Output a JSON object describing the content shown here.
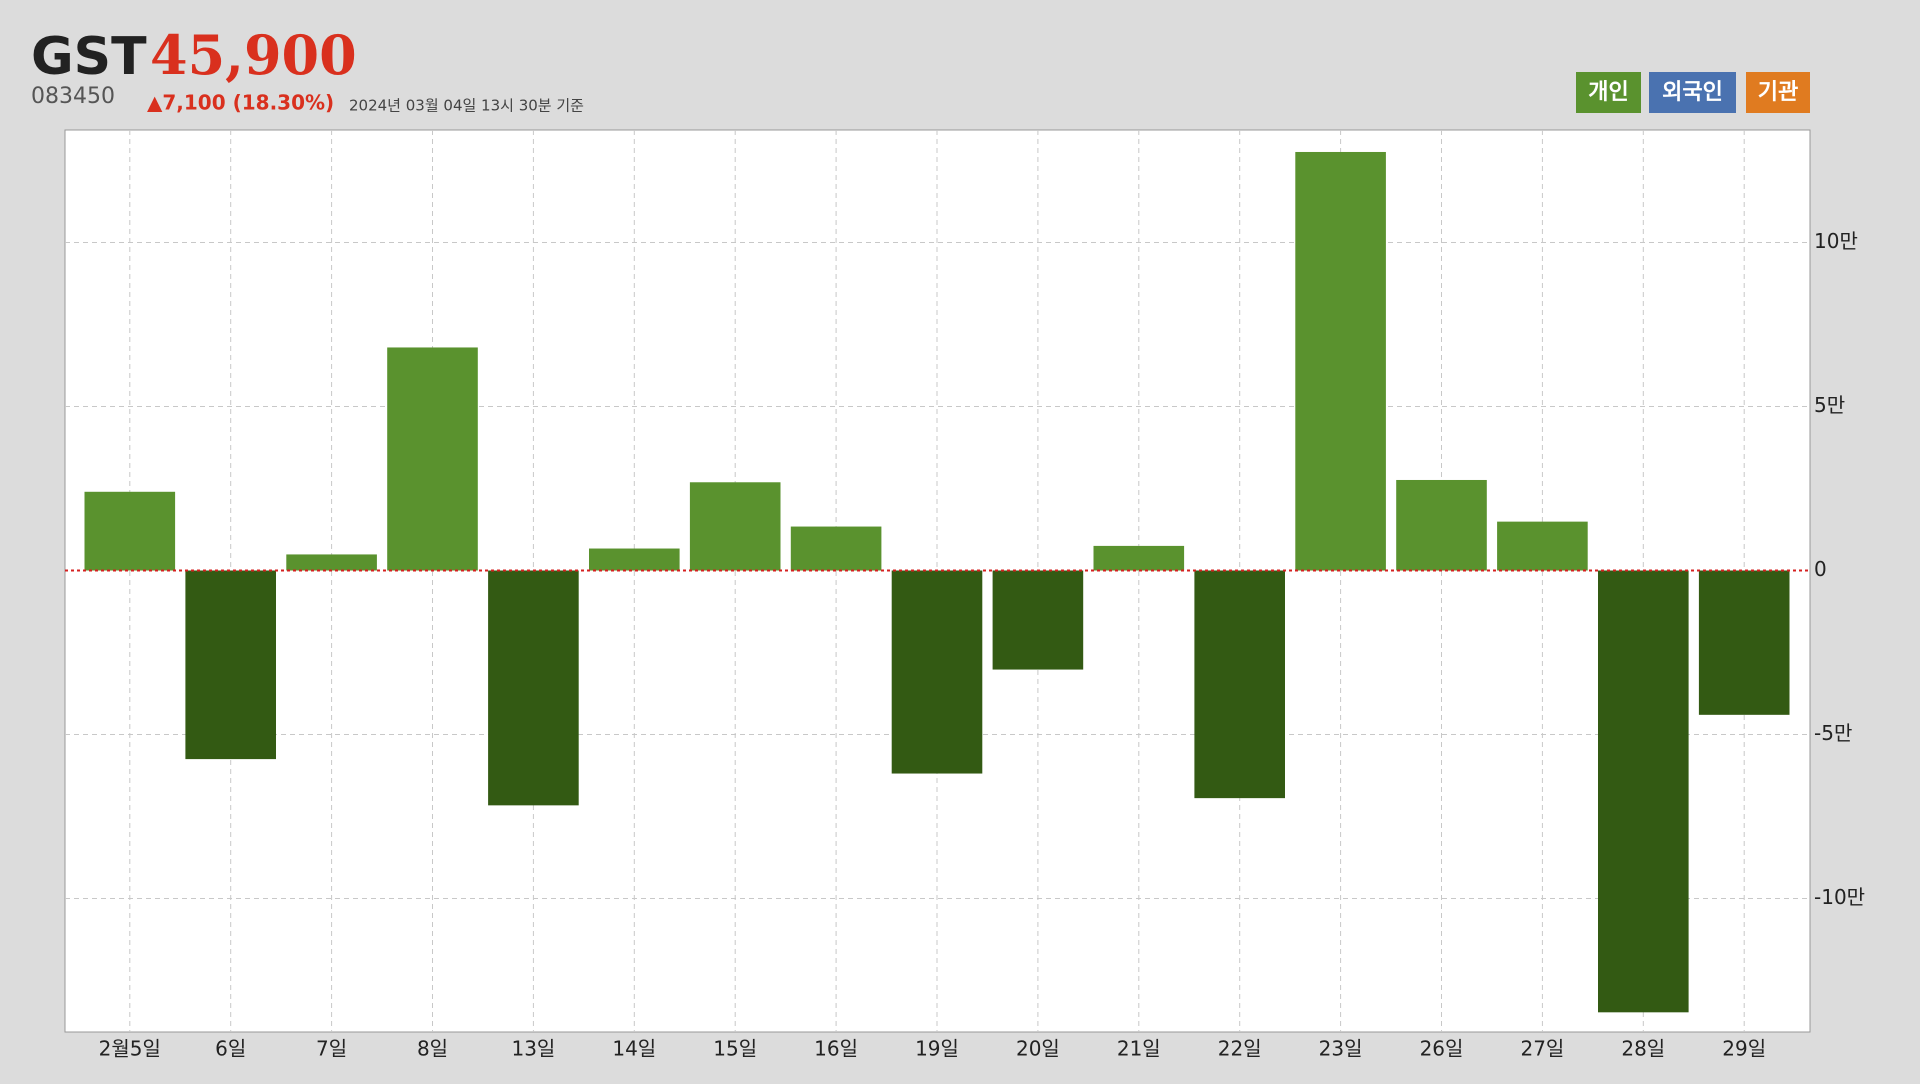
{
  "header": {
    "name": "GST",
    "price": "45,900",
    "code": "083450",
    "change": "▲7,100 (18.30%)",
    "timestamp": "2024년 03월 04일 13시 30분 기준"
  },
  "chart_data": {
    "type": "bar",
    "categories": [
      "2월5일",
      "6일",
      "7일",
      "8일",
      "13일",
      "14일",
      "15일",
      "16일",
      "19일",
      "20일",
      "21일",
      "22일",
      "23일",
      "26일",
      "27일",
      "28일",
      "29일"
    ],
    "series": [
      {
        "name": "개인",
        "color": "#5a922e",
        "negative_color": "#335a13",
        "values": [
          24000,
          -57500,
          4900,
          68000,
          -71600,
          6700,
          26900,
          13400,
          -61900,
          -30200,
          7500,
          -69400,
          127600,
          27600,
          14900,
          -134700,
          -44000
        ]
      }
    ],
    "toggles": [
      {
        "name": "외국인",
        "color": "#4a72b0"
      },
      {
        "name": "기관",
        "color": "#e07b20"
      }
    ],
    "ylim": [
      -140700,
      134300
    ],
    "yticks": [
      {
        "value": -100000,
        "label": "-10만"
      },
      {
        "value": -50000,
        "label": "-5만"
      },
      0,
      {
        "value": 50000,
        "label": "5만"
      },
      {
        "value": 100000,
        "label": "10만"
      }
    ],
    "grid": true
  }
}
